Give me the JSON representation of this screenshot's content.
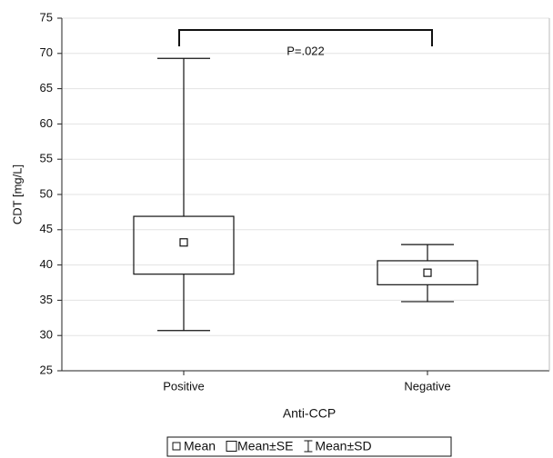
{
  "chart_data": {
    "type": "box",
    "x_label": "Anti-CCP",
    "y_label": "CDT [mg/L]",
    "categories": [
      "Positive",
      "Negative"
    ],
    "ylim": [
      25,
      75
    ],
    "yticks": [
      25,
      30,
      35,
      40,
      45,
      50,
      55,
      60,
      65,
      70,
      75
    ],
    "grid": true,
    "series": [
      {
        "name": "Mean",
        "values": [
          43.2,
          38.9
        ]
      },
      {
        "name": "Mean±SE",
        "low": [
          38.7,
          37.2
        ],
        "high": [
          46.9,
          40.6
        ]
      },
      {
        "name": "Mean±SD",
        "low": [
          30.7,
          34.8
        ],
        "high": [
          69.3,
          42.9
        ]
      }
    ],
    "annotation": "P=.022",
    "legend": "bottom"
  }
}
